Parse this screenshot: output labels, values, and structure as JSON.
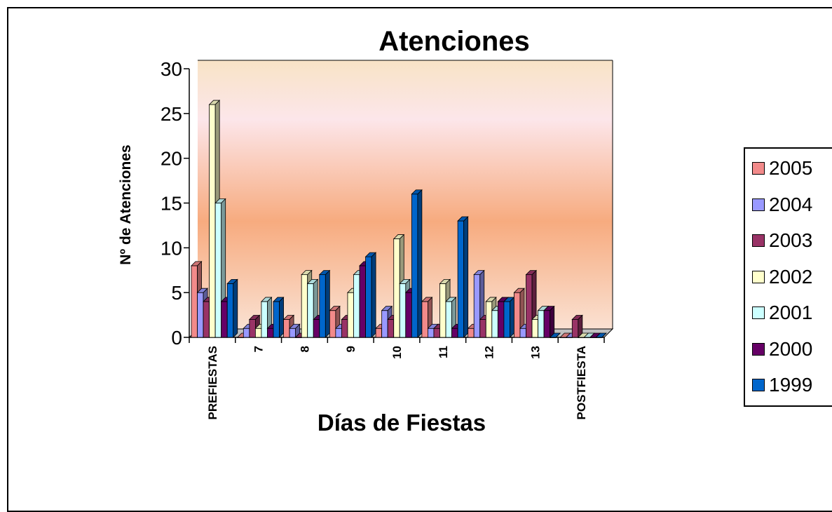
{
  "chart_data": {
    "type": "bar",
    "title": "Atenciones",
    "xlabel": "Días de Fiestas",
    "ylabel": "Nº de Atenciones",
    "ylim": [
      0,
      30
    ],
    "yticks": [
      "0",
      "5",
      "10",
      "15",
      "20",
      "25",
      "30"
    ],
    "categories": [
      "PREFIESTAS",
      "7",
      "8",
      "9",
      "10",
      "11",
      "12",
      "13",
      "POSTFIESTA"
    ],
    "series": [
      {
        "name": "2005",
        "color": "#f28a8a",
        "values": [
          8,
          0,
          2,
          3,
          1,
          4,
          1,
          5,
          0
        ]
      },
      {
        "name": "2004",
        "color": "#9999ff",
        "values": [
          5,
          1,
          1,
          1,
          3,
          1,
          7,
          1,
          0
        ]
      },
      {
        "name": "2003",
        "color": "#993366",
        "values": [
          4,
          2,
          0,
          2,
          2,
          1,
          2,
          7,
          2
        ]
      },
      {
        "name": "2002",
        "color": "#ffffcc",
        "values": [
          26,
          1,
          7,
          5,
          11,
          6,
          4,
          2,
          0
        ]
      },
      {
        "name": "2001",
        "color": "#ccffff",
        "values": [
          15,
          4,
          6,
          7,
          6,
          4,
          3,
          3,
          0
        ]
      },
      {
        "name": "2000",
        "color": "#660066",
        "values": [
          4,
          1,
          2,
          8,
          5,
          1,
          4,
          3,
          0
        ]
      },
      {
        "name": "1999",
        "color": "#0066cc",
        "values": [
          6,
          4,
          7,
          9,
          16,
          13,
          4,
          0,
          0
        ]
      }
    ],
    "grid": false,
    "legend_position": "right"
  }
}
